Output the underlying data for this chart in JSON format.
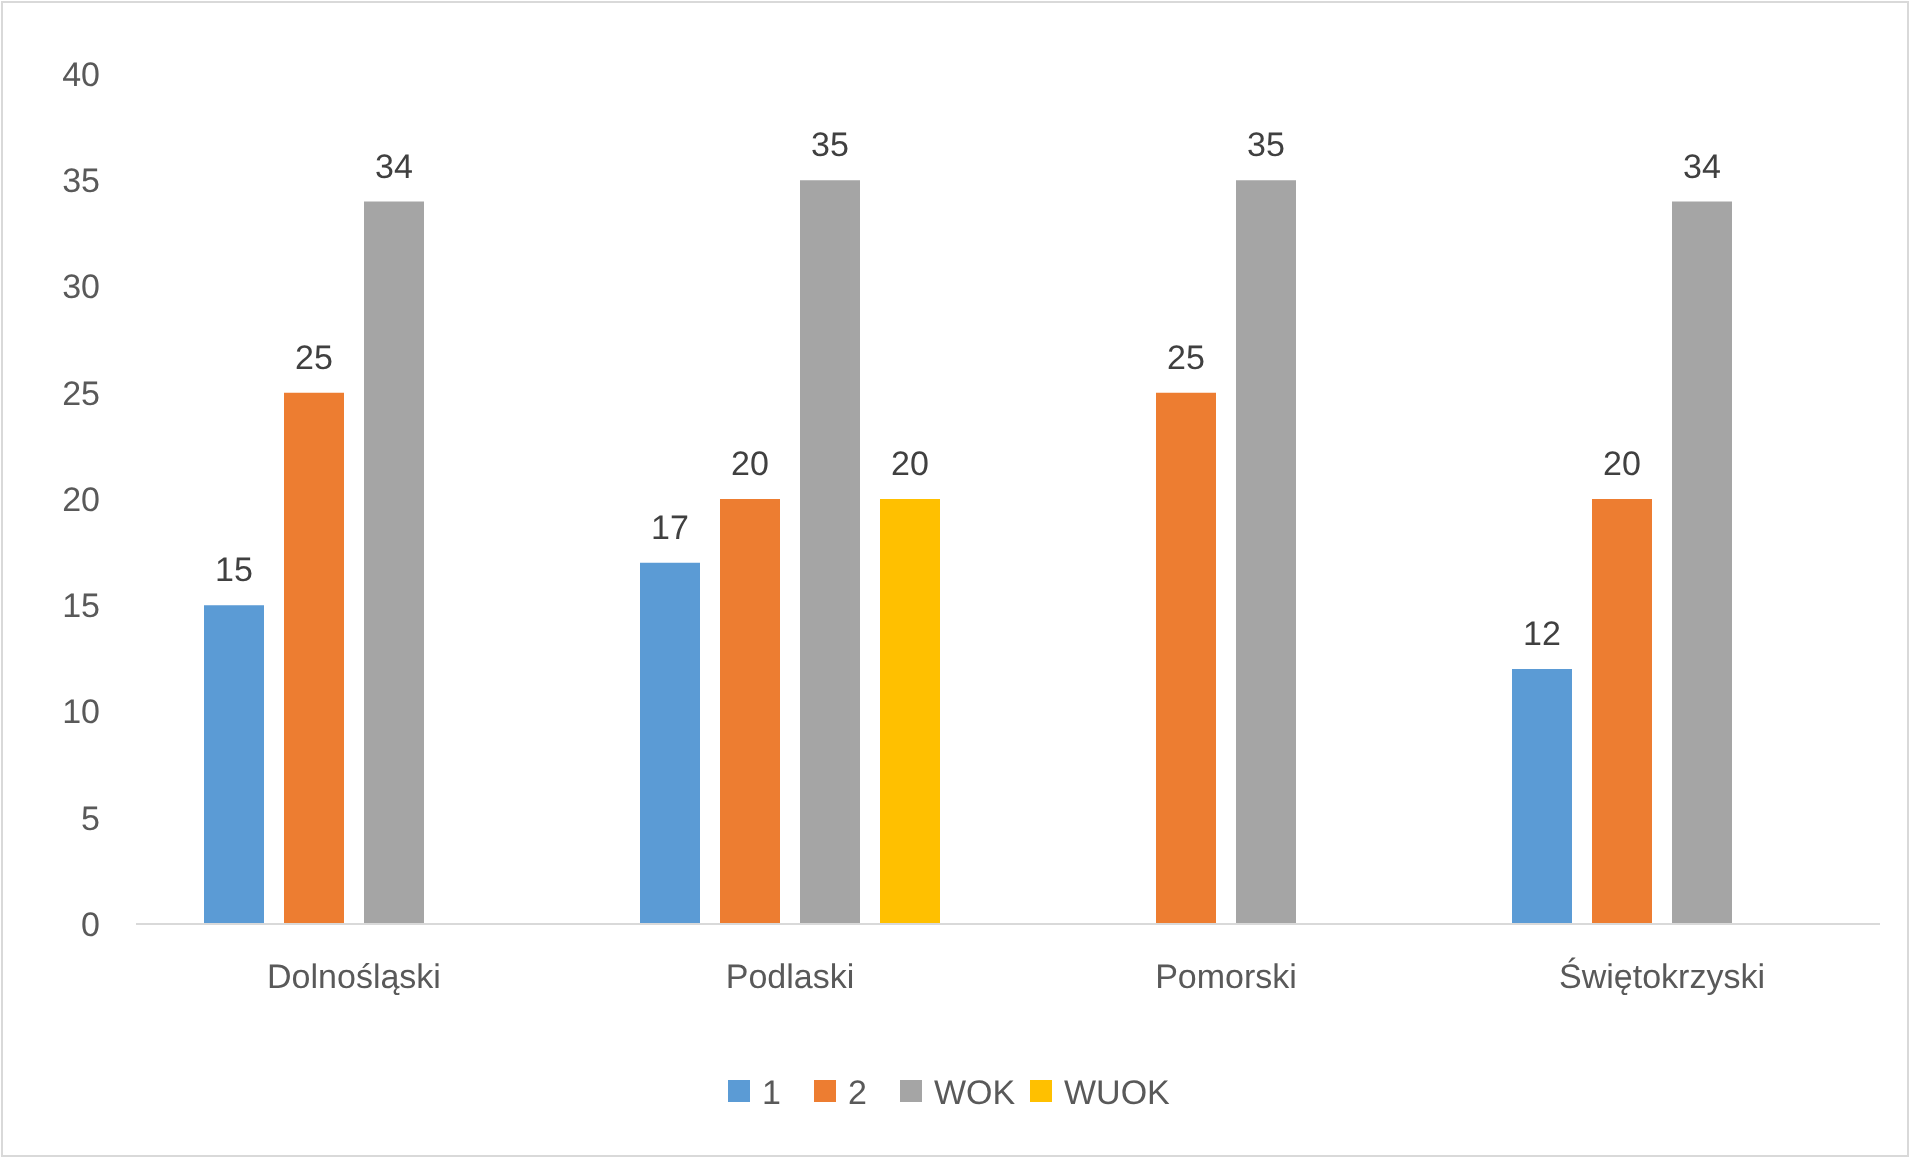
{
  "chart_data": {
    "type": "bar",
    "categories": [
      "Dolnośląski",
      "Podlaski",
      "Pomorski",
      "Świętokrzyski"
    ],
    "series": [
      {
        "name": "1",
        "color": "#5b9bd5",
        "values": [
          15,
          17,
          null,
          12
        ]
      },
      {
        "name": "2",
        "color": "#ed7d31",
        "values": [
          25,
          20,
          25,
          20
        ]
      },
      {
        "name": "WOK",
        "color": "#a5a5a5",
        "values": [
          34,
          35,
          35,
          34
        ]
      },
      {
        "name": "WUOK",
        "color": "#ffc000",
        "values": [
          null,
          20,
          null,
          null
        ]
      }
    ],
    "ylim": [
      0,
      40
    ],
    "yticks": [
      0,
      5,
      10,
      15,
      20,
      25,
      30,
      35,
      40
    ],
    "grid": false,
    "legend": "bottom",
    "data_labels": true
  }
}
